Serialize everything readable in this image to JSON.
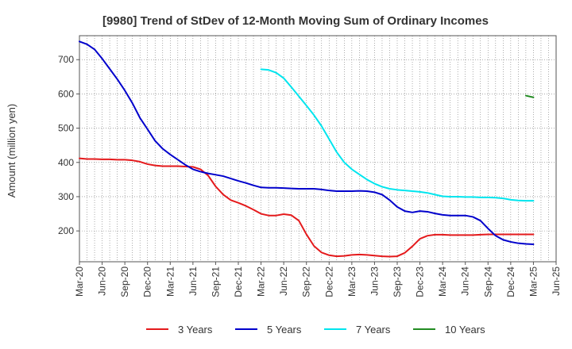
{
  "chart_data": {
    "type": "line",
    "title": "[9980]  Trend of StDev of 12-Month Moving Sum of Ordinary Incomes",
    "xlabel": "",
    "ylabel": "Amount (million yen)",
    "x_ticks": [
      "Mar-20",
      "Jun-20",
      "Sep-20",
      "Dec-20",
      "Mar-21",
      "Jun-21",
      "Sep-21",
      "Dec-21",
      "Mar-22",
      "Jun-22",
      "Sep-22",
      "Dec-22",
      "Mar-23",
      "Jun-23",
      "Sep-23",
      "Dec-23",
      "Mar-24",
      "Jun-24",
      "Sep-24",
      "Dec-24",
      "Mar-25",
      "Jun-25"
    ],
    "y_ticks": [
      200,
      300,
      400,
      500,
      600,
      700
    ],
    "ylim": [
      110,
      770
    ],
    "grid": true,
    "legend_position": "bottom",
    "series": [
      {
        "name": "3 Years",
        "color": "#e41a1c",
        "points": [
          [
            "Mar-20",
            412
          ],
          [
            "Apr-20",
            410
          ],
          [
            "May-20",
            410
          ],
          [
            "Jun-20",
            409
          ],
          [
            "Jul-20",
            409
          ],
          [
            "Aug-20",
            408
          ],
          [
            "Sep-20",
            408
          ],
          [
            "Oct-20",
            406
          ],
          [
            "Nov-20",
            402
          ],
          [
            "Dec-20",
            395
          ],
          [
            "Jan-21",
            391
          ],
          [
            "Feb-21",
            389
          ],
          [
            "Mar-21",
            389
          ],
          [
            "Apr-21",
            389
          ],
          [
            "May-21",
            388
          ],
          [
            "Jun-21",
            387
          ],
          [
            "Jul-21",
            380
          ],
          [
            "Aug-21",
            362
          ],
          [
            "Sep-21",
            330
          ],
          [
            "Oct-21",
            306
          ],
          [
            "Nov-21",
            290
          ],
          [
            "Dec-21",
            282
          ],
          [
            "Jan-22",
            273
          ],
          [
            "Feb-22",
            262
          ],
          [
            "Mar-22",
            250
          ],
          [
            "Apr-22",
            245
          ],
          [
            "May-22",
            245
          ],
          [
            "Jun-22",
            249
          ],
          [
            "Jul-22",
            246
          ],
          [
            "Aug-22",
            230
          ],
          [
            "Sep-22",
            190
          ],
          [
            "Oct-22",
            156
          ],
          [
            "Nov-22",
            137
          ],
          [
            "Dec-22",
            129
          ],
          [
            "Jan-23",
            126
          ],
          [
            "Feb-23",
            127
          ],
          [
            "Mar-23",
            130
          ],
          [
            "Apr-23",
            131
          ],
          [
            "May-23",
            130
          ],
          [
            "Jun-23",
            128
          ],
          [
            "Jul-23",
            126
          ],
          [
            "Aug-23",
            125
          ],
          [
            "Sep-23",
            126
          ],
          [
            "Oct-23",
            136
          ],
          [
            "Nov-23",
            155
          ],
          [
            "Dec-23",
            177
          ],
          [
            "Jan-24",
            186
          ],
          [
            "Feb-24",
            189
          ],
          [
            "Mar-24",
            189
          ],
          [
            "Apr-24",
            188
          ],
          [
            "May-24",
            188
          ],
          [
            "Jun-24",
            188
          ],
          [
            "Jul-24",
            188
          ],
          [
            "Aug-24",
            189
          ],
          [
            "Sep-24",
            190
          ],
          [
            "Oct-24",
            190
          ],
          [
            "Nov-24",
            190
          ],
          [
            "Dec-24",
            190
          ],
          [
            "Jan-25",
            190
          ],
          [
            "Feb-25",
            190
          ],
          [
            "Mar-25",
            190
          ]
        ]
      },
      {
        "name": "5 Years",
        "color": "#0000cc",
        "points": [
          [
            "Mar-20",
            753
          ],
          [
            "Apr-20",
            745
          ],
          [
            "May-20",
            730
          ],
          [
            "Jun-20",
            703
          ],
          [
            "Jul-20",
            673
          ],
          [
            "Aug-20",
            643
          ],
          [
            "Sep-20",
            610
          ],
          [
            "Oct-20",
            573
          ],
          [
            "Nov-20",
            530
          ],
          [
            "Dec-20",
            497
          ],
          [
            "Jan-21",
            463
          ],
          [
            "Feb-21",
            440
          ],
          [
            "Mar-21",
            423
          ],
          [
            "Apr-21",
            408
          ],
          [
            "May-21",
            393
          ],
          [
            "Jun-21",
            380
          ],
          [
            "Jul-21",
            373
          ],
          [
            "Aug-21",
            368
          ],
          [
            "Sep-21",
            364
          ],
          [
            "Oct-21",
            360
          ],
          [
            "Nov-21",
            353
          ],
          [
            "Dec-21",
            346
          ],
          [
            "Jan-22",
            340
          ],
          [
            "Feb-22",
            333
          ],
          [
            "Mar-22",
            327
          ],
          [
            "Apr-22",
            326
          ],
          [
            "May-22",
            326
          ],
          [
            "Jun-22",
            325
          ],
          [
            "Jul-22",
            324
          ],
          [
            "Aug-22",
            323
          ],
          [
            "Sep-22",
            323
          ],
          [
            "Oct-22",
            323
          ],
          [
            "Nov-22",
            321
          ],
          [
            "Dec-22",
            318
          ],
          [
            "Jan-23",
            316
          ],
          [
            "Feb-23",
            316
          ],
          [
            "Mar-23",
            316
          ],
          [
            "Apr-23",
            317
          ],
          [
            "May-23",
            316
          ],
          [
            "Jun-23",
            313
          ],
          [
            "Jul-23",
            306
          ],
          [
            "Aug-23",
            290
          ],
          [
            "Sep-23",
            270
          ],
          [
            "Oct-23",
            258
          ],
          [
            "Nov-23",
            254
          ],
          [
            "Dec-23",
            258
          ],
          [
            "Jan-24",
            256
          ],
          [
            "Feb-24",
            251
          ],
          [
            "Mar-24",
            247
          ],
          [
            "Apr-24",
            245
          ],
          [
            "May-24",
            245
          ],
          [
            "Jun-24",
            245
          ],
          [
            "Jul-24",
            241
          ],
          [
            "Aug-24",
            230
          ],
          [
            "Sep-24",
            207
          ],
          [
            "Oct-24",
            186
          ],
          [
            "Nov-24",
            174
          ],
          [
            "Dec-24",
            168
          ],
          [
            "Jan-25",
            164
          ],
          [
            "Feb-25",
            162
          ],
          [
            "Mar-25",
            161
          ]
        ]
      },
      {
        "name": "7 Years",
        "color": "#00e5ee",
        "points": [
          [
            "Mar-22",
            672
          ],
          [
            "Apr-22",
            670
          ],
          [
            "May-22",
            662
          ],
          [
            "Jun-22",
            646
          ],
          [
            "Jul-22",
            620
          ],
          [
            "Aug-22",
            593
          ],
          [
            "Sep-22",
            566
          ],
          [
            "Oct-22",
            538
          ],
          [
            "Nov-22",
            506
          ],
          [
            "Dec-22",
            468
          ],
          [
            "Jan-23",
            430
          ],
          [
            "Feb-23",
            400
          ],
          [
            "Mar-23",
            380
          ],
          [
            "Apr-23",
            365
          ],
          [
            "May-23",
            350
          ],
          [
            "Jun-23",
            338
          ],
          [
            "Jul-23",
            329
          ],
          [
            "Aug-23",
            323
          ],
          [
            "Sep-23",
            320
          ],
          [
            "Oct-23",
            318
          ],
          [
            "Nov-23",
            316
          ],
          [
            "Dec-23",
            314
          ],
          [
            "Jan-24",
            311
          ],
          [
            "Feb-24",
            306
          ],
          [
            "Mar-24",
            301
          ],
          [
            "Apr-24",
            300
          ],
          [
            "May-24",
            300
          ],
          [
            "Jun-24",
            299
          ],
          [
            "Jul-24",
            299
          ],
          [
            "Aug-24",
            298
          ],
          [
            "Sep-24",
            298
          ],
          [
            "Oct-24",
            297
          ],
          [
            "Nov-24",
            295
          ],
          [
            "Dec-24",
            291
          ],
          [
            "Jan-25",
            289
          ],
          [
            "Feb-25",
            288
          ],
          [
            "Mar-25",
            288
          ]
        ]
      },
      {
        "name": "10 Years",
        "color": "#228b22",
        "points": [
          [
            "Feb-25",
            595
          ],
          [
            "Mar-25",
            590
          ]
        ]
      }
    ]
  }
}
